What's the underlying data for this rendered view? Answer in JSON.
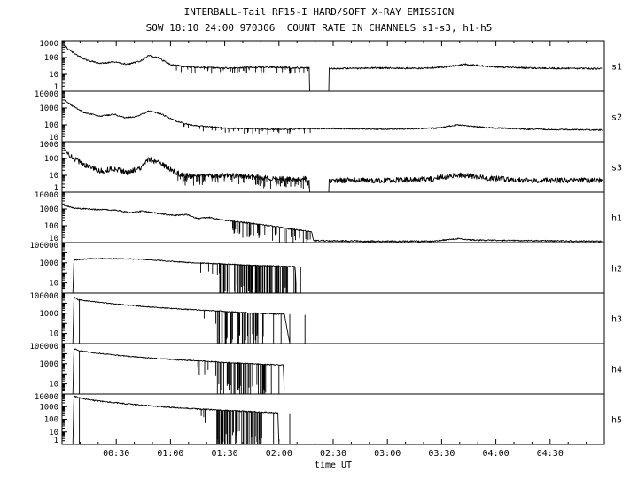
{
  "page": {
    "background": "#ffffff",
    "foreground": "#000000"
  },
  "chart_data": {
    "type": "line",
    "title": "INTERBALL-Tail RF15-I HARD/SOFT X-RAY EMISSION",
    "subtitle": "SOW 18:10 24:00 970306  COUNT RATE IN CHANNELS s1-s3, h1-h5",
    "xlabel": "time UT",
    "ylabel": "",
    "grid": false,
    "x_range_hours": [
      0,
      5
    ],
    "x_minor_step_hours": 0.166667,
    "x_major_ticks": [
      {
        "t": 0.5,
        "label": "00:30"
      },
      {
        "t": 1.0,
        "label": "01:00"
      },
      {
        "t": 1.5,
        "label": "01:30"
      },
      {
        "t": 2.0,
        "label": "02:00"
      },
      {
        "t": 2.5,
        "label": "02:30"
      },
      {
        "t": 3.0,
        "label": "03:00"
      },
      {
        "t": 3.5,
        "label": "03:30"
      },
      {
        "t": 4.0,
        "label": "04:00"
      },
      {
        "t": 4.5,
        "label": "04:30"
      }
    ],
    "panels": [
      {
        "label": "s1",
        "ylim": [
          1,
          1000
        ],
        "yticks": [
          {
            "v": 1000,
            "label": "1000"
          },
          {
            "v": 100,
            "label": "100"
          },
          {
            "v": 10,
            "label": "10"
          },
          {
            "v": 1,
            "label": "1"
          }
        ],
        "noise": 0.05,
        "t_start": 0.02,
        "t_end": 4.98,
        "gaps": [
          [
            2.28,
            2.46
          ]
        ],
        "spiky": [
          {
            "t0": 1.05,
            "t1": 2.28,
            "p": 0.12,
            "drop": 0.35
          }
        ],
        "dropouts": [],
        "keypoints": [
          [
            0.02,
            500
          ],
          [
            0.1,
            200
          ],
          [
            0.2,
            80
          ],
          [
            0.35,
            45
          ],
          [
            0.5,
            55
          ],
          [
            0.6,
            40
          ],
          [
            0.72,
            60
          ],
          [
            0.8,
            140
          ],
          [
            0.88,
            100
          ],
          [
            1.0,
            38
          ],
          [
            1.15,
            28
          ],
          [
            1.5,
            24
          ],
          [
            1.9,
            27
          ],
          [
            2.28,
            24
          ],
          [
            2.46,
            22
          ],
          [
            2.9,
            24
          ],
          [
            3.3,
            23
          ],
          [
            3.55,
            28
          ],
          [
            3.72,
            40
          ],
          [
            3.95,
            28
          ],
          [
            4.3,
            24
          ],
          [
            4.98,
            22
          ]
        ]
      },
      {
        "label": "s2",
        "ylim": [
          10,
          10000
        ],
        "yticks": [
          {
            "v": 10000,
            "label": "10000"
          },
          {
            "v": 1000,
            "label": "1000"
          },
          {
            "v": 100,
            "label": "100"
          },
          {
            "v": 10,
            "label": "10"
          }
        ],
        "noise": 0.04,
        "t_start": 0.02,
        "t_end": 4.98,
        "gaps": [],
        "spiky": [
          {
            "t0": 1.05,
            "t1": 2.3,
            "p": 0.1,
            "drop": 0.3
          }
        ],
        "dropouts": [],
        "keypoints": [
          [
            0.02,
            3000
          ],
          [
            0.1,
            1300
          ],
          [
            0.2,
            550
          ],
          [
            0.35,
            320
          ],
          [
            0.48,
            420
          ],
          [
            0.58,
            260
          ],
          [
            0.7,
            330
          ],
          [
            0.8,
            650
          ],
          [
            0.9,
            480
          ],
          [
            1.05,
            170
          ],
          [
            1.2,
            95
          ],
          [
            1.5,
            65
          ],
          [
            2.0,
            55
          ],
          [
            2.5,
            62
          ],
          [
            3.0,
            55
          ],
          [
            3.45,
            65
          ],
          [
            3.65,
            100
          ],
          [
            3.9,
            70
          ],
          [
            4.3,
            55
          ],
          [
            4.98,
            50
          ]
        ]
      },
      {
        "label": "s3",
        "ylim": [
          1,
          1000
        ],
        "yticks": [
          {
            "v": 1000,
            "label": "1000"
          },
          {
            "v": 100,
            "label": "100"
          },
          {
            "v": 10,
            "label": "10"
          },
          {
            "v": 1,
            "label": "1"
          }
        ],
        "noise": 0.16,
        "t_start": 0.02,
        "t_end": 4.98,
        "gaps": [
          [
            2.28,
            2.46
          ]
        ],
        "spiky": [
          {
            "t0": 1.05,
            "t1": 2.28,
            "p": 0.25,
            "drop": 0.5
          }
        ],
        "dropouts": [],
        "keypoints": [
          [
            0.02,
            300
          ],
          [
            0.1,
            110
          ],
          [
            0.2,
            45
          ],
          [
            0.35,
            18
          ],
          [
            0.48,
            24
          ],
          [
            0.6,
            15
          ],
          [
            0.72,
            25
          ],
          [
            0.8,
            90
          ],
          [
            0.9,
            55
          ],
          [
            1.05,
            14
          ],
          [
            1.2,
            8
          ],
          [
            1.45,
            10
          ],
          [
            1.7,
            9
          ],
          [
            2.0,
            6
          ],
          [
            2.28,
            6
          ],
          [
            2.46,
            5
          ],
          [
            3.0,
            5
          ],
          [
            3.4,
            6
          ],
          [
            3.65,
            11
          ],
          [
            3.9,
            7
          ],
          [
            4.3,
            5
          ],
          [
            4.98,
            5
          ]
        ]
      },
      {
        "label": "h1",
        "ylim": [
          10,
          10000
        ],
        "yticks": [
          {
            "v": 10000,
            "label": "10000"
          },
          {
            "v": 1000,
            "label": "1000"
          },
          {
            "v": 100,
            "label": "100"
          },
          {
            "v": 10,
            "label": "10"
          }
        ],
        "noise": 0.04,
        "t_start": 0.02,
        "t_end": 4.98,
        "gaps": [],
        "spiky": [
          {
            "t0": 1.55,
            "t1": 2.3,
            "p": 0.22,
            "drop": 0.9
          }
        ],
        "dropouts": [],
        "keypoints": [
          [
            0.02,
            1600
          ],
          [
            0.12,
            1100
          ],
          [
            0.3,
            950
          ],
          [
            0.5,
            850
          ],
          [
            0.62,
            600
          ],
          [
            0.75,
            750
          ],
          [
            0.9,
            520
          ],
          [
            1.05,
            420
          ],
          [
            1.15,
            470
          ],
          [
            1.25,
            260
          ],
          [
            1.35,
            320
          ],
          [
            1.5,
            210
          ],
          [
            1.7,
            150
          ],
          [
            1.9,
            105
          ],
          [
            2.1,
            65
          ],
          [
            2.3,
            45
          ],
          [
            2.32,
            13
          ],
          [
            2.9,
            12
          ],
          [
            3.4,
            12
          ],
          [
            3.65,
            17
          ],
          [
            3.8,
            14
          ],
          [
            4.2,
            13
          ],
          [
            4.98,
            12
          ]
        ]
      },
      {
        "label": "h2",
        "ylim": [
          1,
          100000
        ],
        "yticks": [
          {
            "v": 100000,
            "label": "100000"
          },
          {
            "v": 1000,
            "label": "1000"
          },
          {
            "v": 10,
            "label": "10"
          }
        ],
        "noise": 0.05,
        "t_start": 0.1,
        "t_end": 2.16,
        "gaps": [],
        "spiky": [
          {
            "t0": 1.25,
            "t1": 1.45,
            "p": 0.1,
            "drop": 1.5
          },
          {
            "t0": 1.45,
            "t1": 2.16,
            "p": 0.45,
            "drop": 5
          }
        ],
        "dropouts": [
          [
            2.2,
            400
          ]
        ],
        "keypoints": [
          [
            0.1,
            1
          ],
          [
            0.11,
            1800
          ],
          [
            0.25,
            2600
          ],
          [
            0.6,
            2500
          ],
          [
            0.9,
            1700
          ],
          [
            1.2,
            1000
          ],
          [
            1.45,
            800
          ],
          [
            1.7,
            600
          ],
          [
            1.95,
            500
          ],
          [
            2.15,
            420
          ],
          [
            2.16,
            1
          ]
        ]
      },
      {
        "label": "h3",
        "ylim": [
          1,
          100000
        ],
        "yticks": [
          {
            "v": 100000,
            "label": "100000"
          },
          {
            "v": 1000,
            "label": "1000"
          },
          {
            "v": 10,
            "label": "10"
          }
        ],
        "noise": 0.05,
        "t_start": 0.1,
        "t_end": 2.1,
        "gaps": [],
        "spiky": [
          {
            "t0": 1.25,
            "t1": 1.42,
            "p": 0.12,
            "drop": 1.5
          },
          {
            "t0": 1.42,
            "t1": 1.9,
            "p": 0.4,
            "drop": 5
          }
        ],
        "dropouts": [
          [
            0.16,
            20000
          ],
          [
            1.95,
            900
          ],
          [
            2.02,
            850
          ],
          [
            2.1,
            800
          ],
          [
            2.24,
            700
          ]
        ],
        "keypoints": [
          [
            0.1,
            1
          ],
          [
            0.11,
            40000
          ],
          [
            0.15,
            22000
          ],
          [
            0.3,
            14000
          ],
          [
            0.5,
            8000
          ],
          [
            0.7,
            5200
          ],
          [
            0.9,
            3600
          ],
          [
            1.1,
            2600
          ],
          [
            1.3,
            2000
          ],
          [
            1.5,
            1500
          ],
          [
            1.7,
            1150
          ],
          [
            1.9,
            900
          ],
          [
            2.05,
            800
          ],
          [
            2.1,
            1
          ]
        ]
      },
      {
        "label": "h4",
        "ylim": [
          1,
          100000
        ],
        "yticks": [
          {
            "v": 100000,
            "label": "100000"
          },
          {
            "v": 1000,
            "label": "1000"
          },
          {
            "v": 10,
            "label": "10"
          }
        ],
        "noise": 0.05,
        "t_start": 0.1,
        "t_end": 2.05,
        "gaps": [],
        "spiky": [
          {
            "t0": 1.25,
            "t1": 1.42,
            "p": 0.12,
            "drop": 1.5
          },
          {
            "t0": 1.42,
            "t1": 1.88,
            "p": 0.4,
            "drop": 5
          }
        ],
        "dropouts": [
          [
            0.16,
            18000
          ],
          [
            1.93,
            800
          ],
          [
            2.0,
            750
          ],
          [
            2.12,
            700
          ]
        ],
        "keypoints": [
          [
            0.1,
            1
          ],
          [
            0.11,
            35000
          ],
          [
            0.15,
            20000
          ],
          [
            0.3,
            12000
          ],
          [
            0.5,
            7000
          ],
          [
            0.7,
            4600
          ],
          [
            0.9,
            3200
          ],
          [
            1.1,
            2300
          ],
          [
            1.3,
            1800
          ],
          [
            1.5,
            1350
          ],
          [
            1.7,
            1050
          ],
          [
            1.88,
            850
          ],
          [
            2.04,
            750
          ],
          [
            2.05,
            1
          ]
        ]
      },
      {
        "label": "h5",
        "ylim": [
          1,
          10000
        ],
        "yticks": [
          {
            "v": 10000,
            "label": "10000"
          },
          {
            "v": 1000,
            "label": "1000"
          },
          {
            "v": 100,
            "label": "100"
          },
          {
            "v": 10,
            "label": "10"
          },
          {
            "v": 1,
            "label": "1"
          }
        ],
        "noise": 0.05,
        "t_start": 0.1,
        "t_end": 2.0,
        "gaps": [],
        "spiky": [
          {
            "t0": 1.25,
            "t1": 1.42,
            "p": 0.12,
            "drop": 1.2
          },
          {
            "t0": 1.42,
            "t1": 1.85,
            "p": 0.4,
            "drop": 4
          }
        ],
        "dropouts": [
          [
            0.16,
            4500
          ],
          [
            1.95,
            320
          ],
          [
            2.1,
            300
          ]
        ],
        "keypoints": [
          [
            0.1,
            1
          ],
          [
            0.11,
            7500
          ],
          [
            0.15,
            5000
          ],
          [
            0.3,
            3000
          ],
          [
            0.5,
            2000
          ],
          [
            0.7,
            1400
          ],
          [
            0.9,
            1000
          ],
          [
            1.1,
            780
          ],
          [
            1.3,
            620
          ],
          [
            1.5,
            500
          ],
          [
            1.7,
            420
          ],
          [
            1.9,
            350
          ],
          [
            1.99,
            320
          ],
          [
            2.0,
            1
          ]
        ]
      }
    ]
  }
}
